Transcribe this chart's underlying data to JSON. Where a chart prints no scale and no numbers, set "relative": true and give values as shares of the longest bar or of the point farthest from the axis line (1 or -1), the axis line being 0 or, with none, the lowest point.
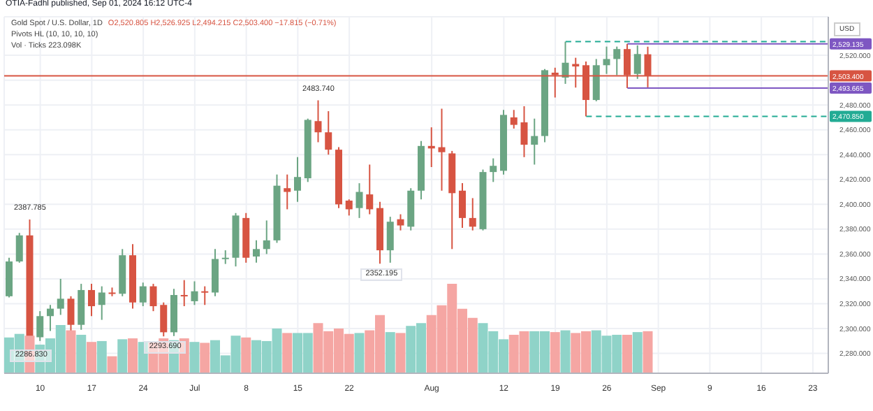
{
  "chart_data": [
    {
      "type": "candlestick",
      "title": "Gold Spot / U.S. Dollar, 1D",
      "subtitle": "O2,520.805 H2,526.925 L2,494.215 C2,503.400 −17.815 (−0.71%)",
      "ylabel": "USD",
      "categories": [
        null,
        null,
        null,
        "10",
        null,
        null,
        null,
        null,
        "17",
        null,
        null,
        null,
        null,
        "24",
        null,
        null,
        null,
        null,
        "Jul",
        null,
        null,
        null,
        null,
        "8",
        null,
        null,
        null,
        null,
        "15",
        null,
        null,
        null,
        null,
        "22",
        null,
        null,
        null,
        null,
        null,
        null,
        null,
        "Aug",
        null,
        null,
        null,
        null,
        null,
        null,
        "12",
        null,
        null,
        null,
        null,
        "19",
        null,
        null,
        null,
        null,
        "26",
        null,
        null,
        null,
        null,
        "Sep",
        null,
        null,
        null,
        null,
        "9",
        null,
        null,
        null,
        null,
        "16",
        null,
        null,
        null,
        null,
        "23",
        null
      ],
      "ohlc": [
        [
          2326,
          2357,
          2325,
          2354
        ],
        [
          2354,
          2377,
          2353,
          2375
        ],
        [
          2375,
          2387.785,
          2286.83,
          2293
        ],
        [
          2293,
          2314,
          2290,
          2310
        ],
        [
          2310,
          2319,
          2298,
          2316
        ],
        [
          2316,
          2340,
          2311,
          2324
        ],
        [
          2324,
          2326,
          2295,
          2303
        ],
        [
          2303,
          2336,
          2299,
          2331
        ],
        [
          2331,
          2336,
          2310,
          2318
        ],
        [
          2319,
          2334,
          2307,
          2329
        ],
        [
          2329,
          2333,
          2326,
          2328
        ],
        [
          2328,
          2364,
          2326,
          2359
        ],
        [
          2359,
          2368,
          2316,
          2321
        ],
        [
          2321,
          2337,
          2318,
          2334
        ],
        [
          2334,
          2336,
          2314,
          2318
        ],
        [
          2319,
          2321,
          2293.69,
          2297
        ],
        [
          2297,
          2332,
          2294,
          2327
        ],
        [
          2327,
          2339,
          2318,
          2326
        ],
        [
          2322,
          2338,
          2319,
          2330
        ],
        [
          2330,
          2334,
          2319,
          2329
        ],
        [
          2329,
          2364,
          2326,
          2356
        ],
        [
          2356,
          2363,
          2352,
          2357
        ],
        [
          2357,
          2393,
          2350,
          2391
        ],
        [
          2389,
          2393,
          2353,
          2357
        ],
        [
          2358,
          2371,
          2353,
          2364
        ],
        [
          2364,
          2387,
          2360,
          2371
        ],
        [
          2371,
          2424,
          2369,
          2415
        ],
        [
          2413,
          2424,
          2396,
          2410
        ],
        [
          2411,
          2438,
          2402,
          2422
        ],
        [
          2421,
          2469,
          2418,
          2468
        ],
        [
          2467,
          2483.74,
          2450,
          2458
        ],
        [
          2458,
          2475,
          2440,
          2444
        ],
        [
          2444,
          2446,
          2397,
          2400
        ],
        [
          2403,
          2404,
          2391,
          2396
        ],
        [
          2397,
          2417,
          2389,
          2410
        ],
        [
          2408,
          2432,
          2392,
          2396
        ],
        [
          2397,
          2402,
          2352.195,
          2363
        ],
        [
          2363,
          2390,
          2353,
          2386
        ],
        [
          2388,
          2392,
          2379,
          2383
        ],
        [
          2382,
          2413,
          2379,
          2411
        ],
        [
          2411,
          2451,
          2404,
          2447
        ],
        [
          2447,
          2462,
          2430,
          2445
        ],
        [
          2446,
          2477,
          2411,
          2442
        ],
        [
          2441,
          2443,
          2364,
          2409
        ],
        [
          2411,
          2417,
          2381,
          2389
        ],
        [
          2389,
          2405,
          2379,
          2382
        ],
        [
          2380,
          2428,
          2379,
          2426
        ],
        [
          2426,
          2437,
          2418,
          2431
        ],
        [
          2427,
          2476,
          2424,
          2472
        ],
        [
          2470,
          2476,
          2461,
          2464
        ],
        [
          2466,
          2479,
          2438,
          2448
        ],
        [
          2448,
          2469,
          2432,
          2455
        ],
        [
          2455,
          2509,
          2450,
          2508
        ],
        [
          2506,
          2510,
          2486,
          2504
        ],
        [
          2502,
          2531,
          2497,
          2514
        ],
        [
          2513,
          2518,
          2494,
          2511
        ],
        [
          2512,
          2515,
          2470.85,
          2484
        ],
        [
          2484,
          2517,
          2483,
          2512
        ],
        [
          2512,
          2527,
          2505,
          2517
        ],
        [
          2517,
          2527,
          2504,
          2525
        ],
        [
          2525,
          2529.135,
          2493.665,
          2504
        ],
        [
          2505,
          2528,
          2501,
          2521
        ],
        [
          2520.805,
          2526.925,
          2494.215,
          2503.4
        ],
        null,
        null,
        null,
        null,
        null,
        null,
        null,
        null,
        null,
        null,
        null,
        null,
        null,
        null,
        null,
        null,
        null
      ],
      "ylim": [
        2264,
        2551
      ],
      "yticks": [
        {
          "value": 2280,
          "label": "2,280.000"
        },
        {
          "value": 2300,
          "label": "2,300.000"
        },
        {
          "value": 2320,
          "label": "2,320.000"
        },
        {
          "value": 2340,
          "label": "2,340.000"
        },
        {
          "value": 2360,
          "label": "2,360.000"
        },
        {
          "value": 2380,
          "label": "2,380.000"
        },
        {
          "value": 2400,
          "label": "2,400.000"
        },
        {
          "value": 2420,
          "label": "2,420.000"
        },
        {
          "value": 2440,
          "label": "2,440.000"
        },
        {
          "value": 2460,
          "label": "2,460.000"
        },
        {
          "value": 2480,
          "label": "2,480.000"
        },
        {
          "value": 2500,
          "label": null
        },
        {
          "value": 2520,
          "label": "2,520.000"
        }
      ],
      "grid": true,
      "ref_lines": [
        {
          "axis": "y",
          "value": 2503.4,
          "label": "2,503.400",
          "color": "#d75442",
          "line_style": "solid"
        },
        {
          "axis": "y",
          "value": 2529.135,
          "label": "2,529.135",
          "color": "#7e57c2",
          "line_style": "solid"
        },
        {
          "axis": "y",
          "value": 2493.665,
          "label": "2,493.665",
          "color": "#7e57c2",
          "line_style": "solid"
        },
        {
          "axis": "y",
          "value": 2531,
          "label": null,
          "color": "#22ab94",
          "line_style": "dashed"
        },
        {
          "axis": "y",
          "value": 2470.85,
          "label": "2,470.850",
          "color": "#22ab94",
          "line_style": "dashed"
        }
      ],
      "annotations": [
        "OTIA-Fadhl published, Sep 01, 2024 16:12 UTC-4",
        "Pivots HL (10, 10, 10, 10)",
        {
          "text": "2387.785",
          "y": 2387.785
        },
        {
          "text": "2286.830",
          "y": 2286.83
        },
        {
          "text": "2293.690",
          "y": 2293.69
        },
        {
          "text": "2483.740",
          "y": 2483.74
        },
        {
          "text": "2352.195",
          "y": 2352.195
        }
      ]
    },
    {
      "type": "bar",
      "relative": true,
      "categories": [
        null,
        null,
        null,
        null,
        null,
        null,
        null,
        null,
        null,
        null,
        null,
        null,
        null,
        null,
        null,
        null,
        null,
        null,
        null,
        null,
        null,
        null,
        null,
        null,
        null,
        null,
        null,
        null,
        null,
        null,
        null,
        null,
        null,
        null,
        null,
        null,
        null,
        null,
        null,
        null,
        null,
        null,
        null,
        null,
        null,
        null,
        null,
        null,
        null,
        null,
        null,
        null,
        null,
        null,
        null,
        null,
        null,
        null,
        null,
        null,
        null,
        null,
        null,
        null,
        null,
        null,
        null,
        null,
        null,
        null,
        null,
        null,
        null,
        null,
        null,
        null,
        null,
        null,
        null,
        null
      ],
      "values": [
        0.4,
        0.44,
        0.42,
        0.32,
        0.39,
        0.54,
        0.48,
        0.43,
        0.35,
        0.36,
        0.19,
        0.38,
        0.39,
        0.35,
        0.35,
        0.39,
        0.37,
        0.39,
        0.35,
        0.34,
        0.37,
        0.2,
        0.42,
        0.4,
        0.37,
        0.36,
        0.5,
        0.45,
        0.45,
        0.45,
        0.56,
        0.47,
        0.5,
        0.44,
        0.45,
        0.48,
        0.65,
        0.46,
        0.45,
        0.53,
        0.56,
        0.65,
        0.76,
        1,
        0.72,
        0.62,
        0.56,
        0.47,
        0.38,
        0.43,
        0.47,
        0.47,
        0.47,
        0.46,
        0.48,
        0.45,
        0.47,
        0.48,
        0.42,
        0.43,
        0.43,
        0.46,
        0.47,
        null,
        null,
        null,
        null,
        null,
        null,
        null,
        null,
        null,
        null,
        null,
        null,
        null,
        null,
        null,
        null,
        null
      ],
      "colors": [
        "#8fd3c8",
        "#8fd3c8",
        "#f5a6a3",
        "#8fd3c8",
        "#8fd3c8",
        "#8fd3c8",
        "#f5a6a3",
        "#8fd3c8",
        "#f5a6a3",
        "#8fd3c8",
        "#f5a6a3",
        "#8fd3c8",
        "#f5a6a3",
        "#8fd3c8",
        "#f5a6a3",
        "#f5a6a3",
        "#8fd3c8",
        "#f5a6a3",
        "#8fd3c8",
        "#f5a6a3",
        "#8fd3c8",
        "#8fd3c8",
        "#8fd3c8",
        "#f5a6a3",
        "#8fd3c8",
        "#8fd3c8",
        "#8fd3c8",
        "#f5a6a3",
        "#8fd3c8",
        "#8fd3c8",
        "#f5a6a3",
        "#f5a6a3",
        "#f5a6a3",
        "#f5a6a3",
        "#8fd3c8",
        "#f5a6a3",
        "#f5a6a3",
        "#8fd3c8",
        "#f5a6a3",
        "#8fd3c8",
        "#8fd3c8",
        "#f5a6a3",
        "#f5a6a3",
        "#f5a6a3",
        "#f5a6a3",
        "#f5a6a3",
        "#8fd3c8",
        "#8fd3c8",
        "#8fd3c8",
        "#f5a6a3",
        "#f5a6a3",
        "#8fd3c8",
        "#8fd3c8",
        "#f5a6a3",
        "#8fd3c8",
        "#f5a6a3",
        "#f5a6a3",
        "#8fd3c8",
        "#8fd3c8",
        "#8fd3c8",
        "#f5a6a3",
        "#8fd3c8",
        "#f5a6a3",
        null,
        null,
        null,
        null,
        null,
        null,
        null,
        null,
        null,
        null,
        null,
        null,
        null,
        null,
        null,
        null,
        null
      ],
      "annotations": [
        "Vol · Ticks 223.098K"
      ]
    }
  ]
}
